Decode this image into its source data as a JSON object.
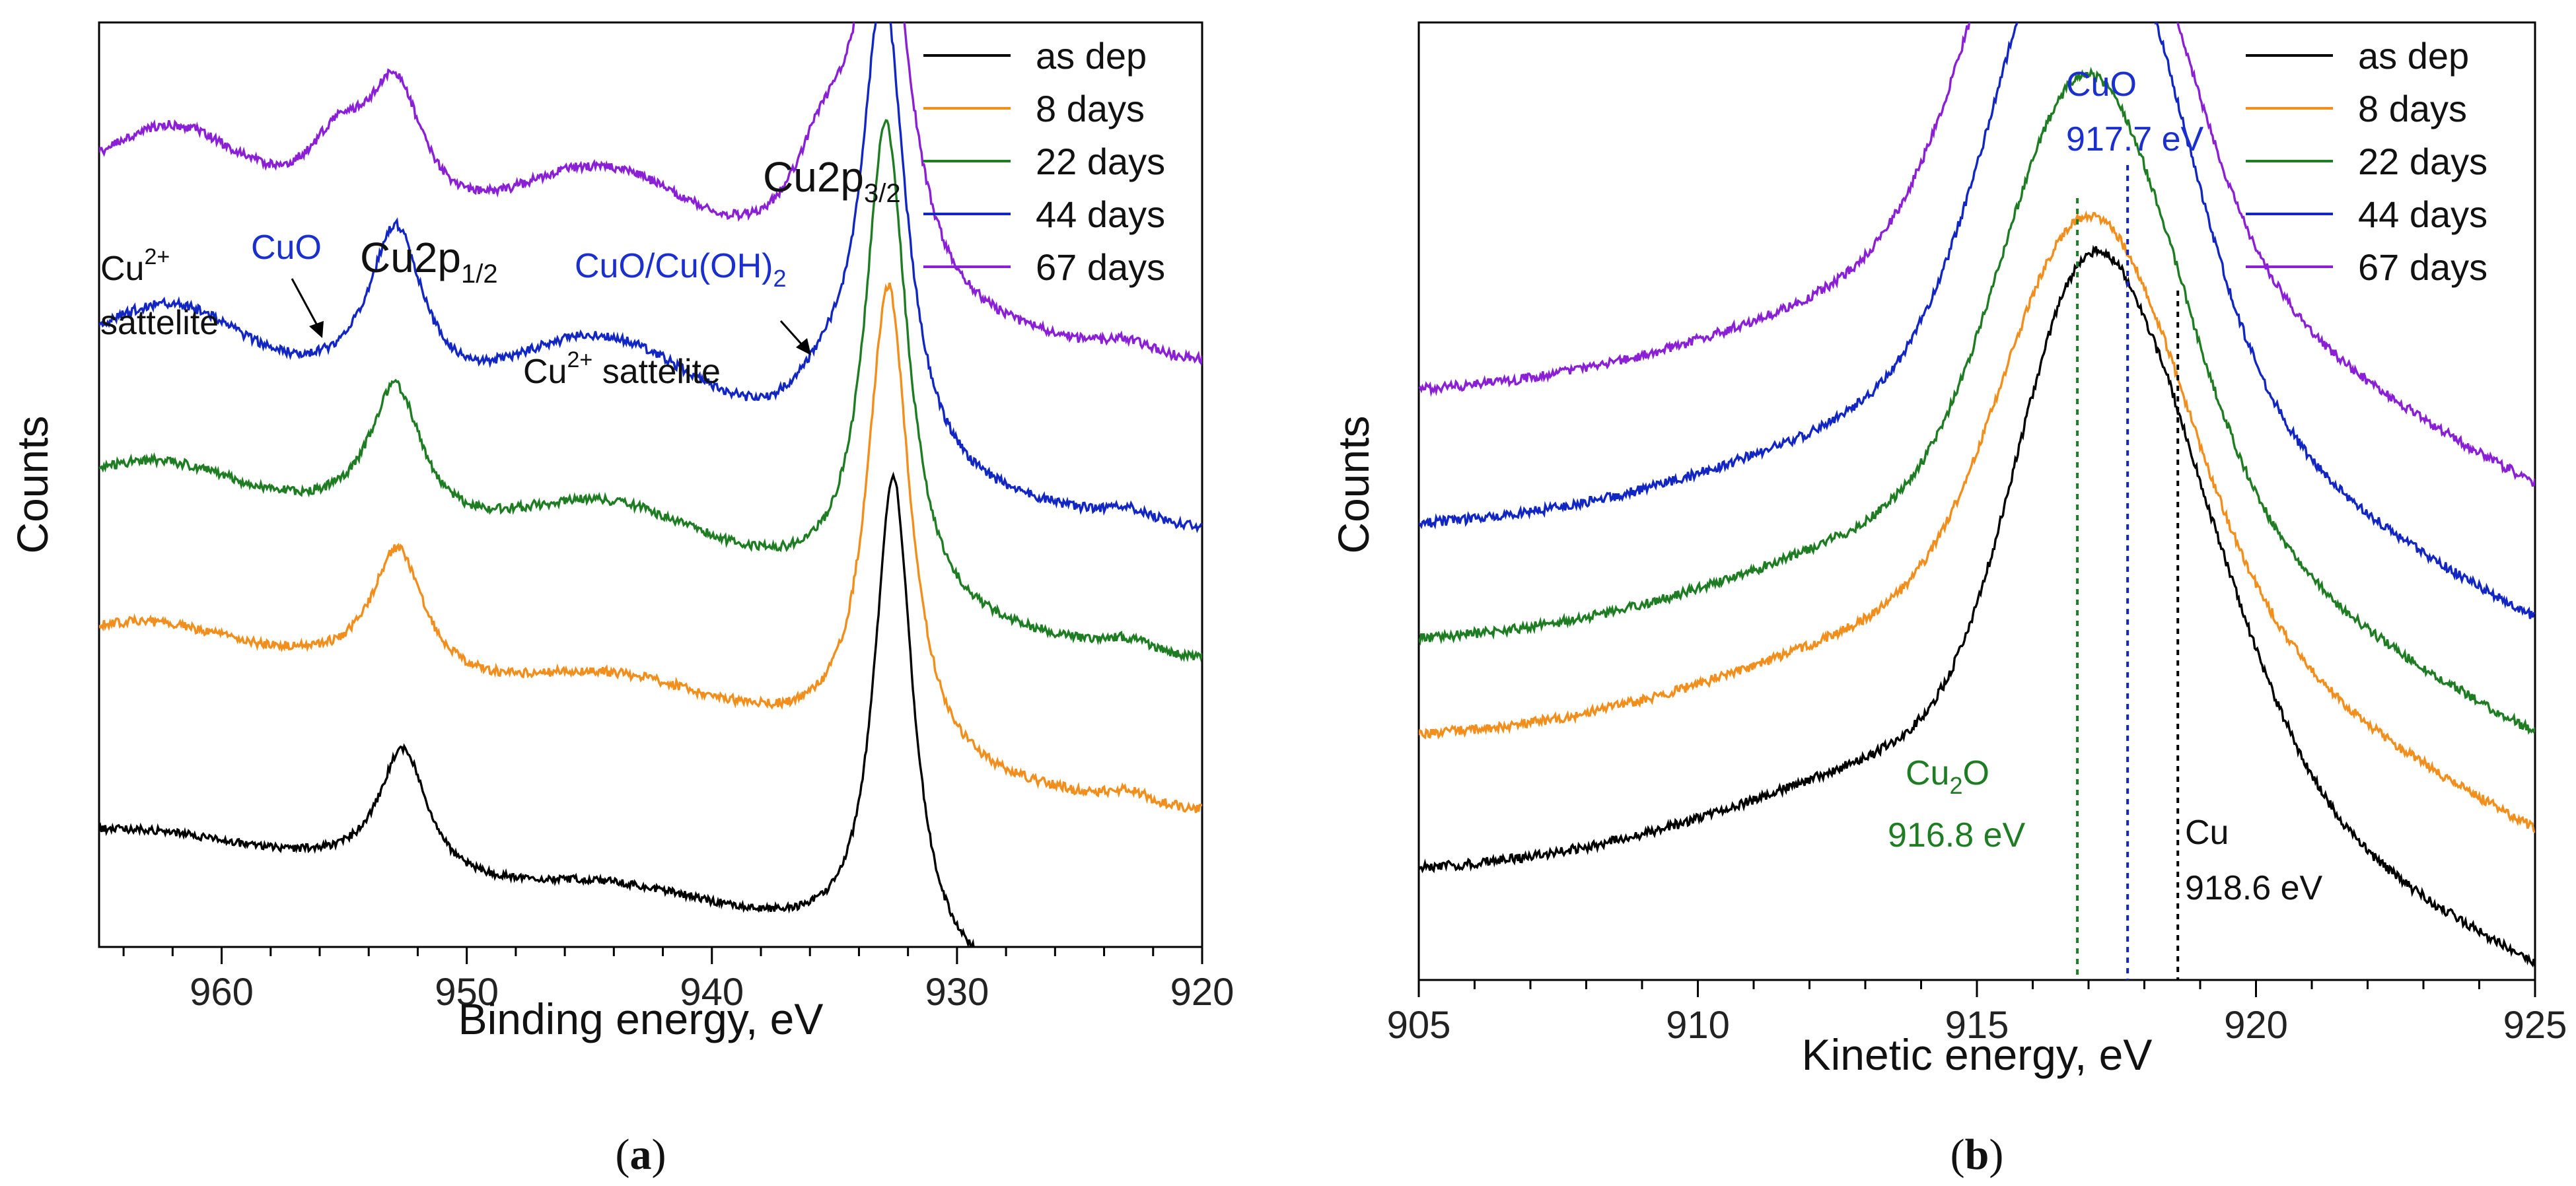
{
  "colors": {
    "as_dep": "#000000",
    "d8": "#f28e1c",
    "d22": "#1e7d22",
    "d44": "#1226c4",
    "d67": "#8a1fd6",
    "blue_text": "#1a2fd0",
    "green_text": "#1e7d22"
  },
  "chart_data": [
    {
      "type": "line",
      "panel": "(a)",
      "panel_label": {
        "open": "(",
        "letter": "a",
        "close": ")"
      },
      "xlabel": "Binding energy, eV",
      "ylabel": "Counts",
      "xlim": [
        965,
        920
      ],
      "x_reversed": true,
      "xticks": [
        960,
        950,
        940,
        930,
        920
      ],
      "yticks_shown": false,
      "y_units": "arbitrary (stacked, offset)",
      "legend": {
        "location": "top-right",
        "entries": [
          "as dep",
          "8 days",
          "22 days",
          "44 days",
          "67 days"
        ]
      },
      "series": [
        {
          "name": "as dep",
          "offset": 0.0,
          "peaks": [
            [
              952.6,
              0.14,
              1.2
            ],
            [
              932.6,
              0.53,
              0.95
            ]
          ],
          "satellites": [
            [
              944,
              0.025,
              3.5
            ],
            [
              962.5,
              0.01,
              2.5
            ],
            [
              923,
              0.01,
              0.8
            ]
          ],
          "baseline": [
            0.06,
            -0.13
          ],
          "noise": 0.004
        },
        {
          "name": "8 days",
          "offset": 0.215,
          "peaks": [
            [
              952.8,
              0.14,
              1.3
            ],
            [
              932.8,
              0.52,
              1.05
            ]
          ],
          "satellites": [
            [
              944,
              0.035,
              3.5
            ],
            [
              962.5,
              0.02,
              2.5
            ],
            [
              923,
              0.01,
              0.8
            ]
          ],
          "baseline": [
            0.06,
            -0.13
          ],
          "noise": 0.005
        },
        {
          "name": "22 days",
          "offset": 0.38,
          "peaks": [
            [
              952.9,
              0.15,
              1.3
            ],
            [
              932.9,
              0.53,
              1.05
            ]
          ],
          "satellites": [
            [
              944.3,
              0.055,
              3.5
            ],
            [
              962.3,
              0.03,
              2.5
            ],
            [
              923,
              0.01,
              0.8
            ]
          ],
          "baseline": [
            0.06,
            -0.13
          ],
          "noise": 0.005
        },
        {
          "name": "44 days",
          "offset": 0.52,
          "peaks": [
            [
              952.9,
              0.18,
              1.35
            ],
            [
              933.0,
              0.52,
              1.1
            ],
            [
              935.4,
              0.05,
              1.6
            ]
          ],
          "satellites": [
            [
              944.4,
              0.09,
              3.5
            ],
            [
              962.0,
              0.06,
              2.5
            ],
            [
              923,
              0.01,
              0.8
            ]
          ],
          "baseline": [
            0.06,
            -0.13
          ],
          "noise": 0.005
        },
        {
          "name": "67 days",
          "offset": 0.7,
          "peaks": [
            [
              952.9,
              0.14,
              1.4
            ],
            [
              955.2,
              0.07,
              1.6
            ],
            [
              933.0,
              0.45,
              1.2
            ],
            [
              935.4,
              0.12,
              1.7
            ]
          ],
          "satellites": [
            [
              944.4,
              0.09,
              3.5
            ],
            [
              962.0,
              0.07,
              2.5
            ],
            [
              923,
              0.01,
              0.8
            ]
          ],
          "baseline": [
            0.06,
            -0.13
          ],
          "noise": 0.005
        }
      ],
      "annotations": {
        "cu2_sat_left_1": "Cu",
        "cu2_sat_left_sup": "2+",
        "cu2_sat_left_2": "sattelite",
        "cuo_left": "CuO",
        "cu2p12_main": "Cu2p",
        "cu2p12_sub": "1/2",
        "cu2_sat_mid_main": "Cu",
        "cu2_sat_mid_sup": "2+",
        "cu2_sat_mid_rest": " sattelite",
        "cuo_cuoh_main": "CuO/Cu(OH)",
        "cuo_cuoh_sub": "2",
        "cu2p32_main": "Cu2p",
        "cu2p32_sub": "3/2"
      }
    },
    {
      "type": "line",
      "panel": "(b)",
      "panel_label": {
        "open": "(",
        "letter": "b",
        "close": ")"
      },
      "xlabel": "Kinetic energy, eV",
      "ylabel": "Counts",
      "xlim": [
        905,
        925
      ],
      "x_reversed": false,
      "xticks": [
        905,
        910,
        915,
        920,
        925
      ],
      "yticks_shown": false,
      "y_units": "arbitrary (stacked, offset)",
      "legend": {
        "location": "top-right",
        "entries": [
          "as dep",
          "8 days",
          "22 days",
          "44 days",
          "67 days"
        ]
      },
      "series": [
        {
          "name": "as dep",
          "offset": 0.0,
          "peaks": [
            [
              916.8,
              0.38,
              1.2
            ],
            [
              918.6,
              0.22,
              1.4
            ]
          ],
          "base_level": 0.11,
          "tail": 0.16,
          "noise": 0.005
        },
        {
          "name": "8 days",
          "offset": 0.14,
          "peaks": [
            [
              916.8,
              0.32,
              1.4
            ],
            [
              918.2,
              0.1,
              1.5
            ]
          ],
          "base_level": 0.11,
          "tail": 0.16,
          "noise": 0.005
        },
        {
          "name": "22 days",
          "offset": 0.24,
          "peaks": [
            [
              916.8,
              0.36,
              1.4
            ],
            [
              918.0,
              0.1,
              1.5
            ]
          ],
          "base_level": 0.11,
          "tail": 0.16,
          "noise": 0.005
        },
        {
          "name": "44 days",
          "offset": 0.36,
          "peaks": [
            [
              916.8,
              0.44,
              1.5
            ],
            [
              917.9,
              0.1,
              1.5
            ]
          ],
          "base_level": 0.11,
          "tail": 0.16,
          "noise": 0.005
        },
        {
          "name": "67 days",
          "offset": 0.5,
          "peaks": [
            [
              916.5,
              0.4,
              1.5
            ],
            [
              917.7,
              0.12,
              1.5
            ]
          ],
          "base_level": 0.11,
          "tail": 0.16,
          "noise": 0.005
        }
      ],
      "reference_lines": [
        {
          "name": "Cu2O",
          "x": 916.8,
          "color": "green"
        },
        {
          "name": "CuO",
          "x": 917.7,
          "color": "blue"
        },
        {
          "name": "Cu",
          "x": 918.6,
          "color": "black"
        }
      ],
      "annotations": {
        "cuo_label": "CuO",
        "cuo_energy": "917.7 eV",
        "cu2o_main": "Cu",
        "cu2o_sub": "2",
        "cu2o_rest": "O",
        "cu2o_energy": "916.8 eV",
        "cu_label": "Cu",
        "cu_energy": "918.6 eV"
      }
    }
  ]
}
